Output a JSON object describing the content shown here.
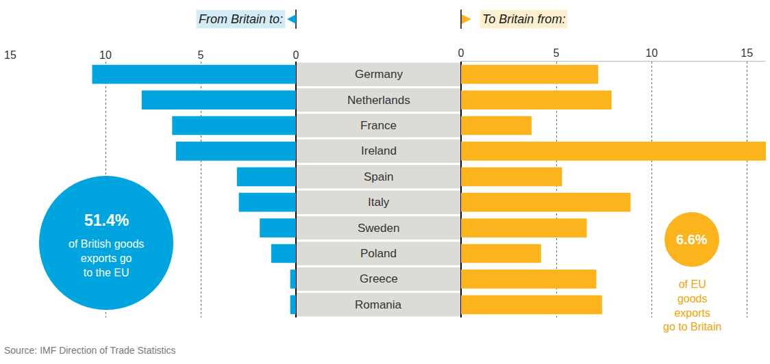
{
  "chart_data": [
    {
      "type": "bar",
      "orientation": "horizontal",
      "title": "From Britain to:",
      "categories": [
        "Germany",
        "Netherlands",
        "France",
        "Ireland",
        "Spain",
        "Italy",
        "Sweden",
        "Poland",
        "Greece",
        "Romania"
      ],
      "values": [
        10.7,
        8.1,
        6.5,
        6.3,
        3.1,
        3.0,
        1.9,
        1.3,
        0.3,
        0.3
      ],
      "color": "#00a5df",
      "xlim": [
        15,
        0
      ],
      "xticks": [
        15,
        10,
        5,
        0
      ],
      "grid": true,
      "annotations": [
        "51.4%",
        "of British goods",
        "exports go",
        "to the EU"
      ],
      "source": "Source: IMF Direction of Trade Statistics"
    },
    {
      "type": "bar",
      "orientation": "horizontal",
      "title": "To Britain from:",
      "categories": [
        "Germany",
        "Netherlands",
        "France",
        "Ireland",
        "Spain",
        "Italy",
        "Sweden",
        "Poland",
        "Greece",
        "Romania"
      ],
      "values": [
        7.2,
        7.9,
        3.7,
        16.0,
        5.3,
        8.9,
        6.6,
        4.2,
        7.1,
        7.4
      ],
      "color": "#fbb41c",
      "xlim": [
        0,
        16
      ],
      "xticks": [
        0,
        5,
        10,
        15
      ],
      "grid": true,
      "annotations": [
        "6.6%",
        "of EU",
        "goods",
        "exports",
        "go to Britain"
      ]
    }
  ]
}
